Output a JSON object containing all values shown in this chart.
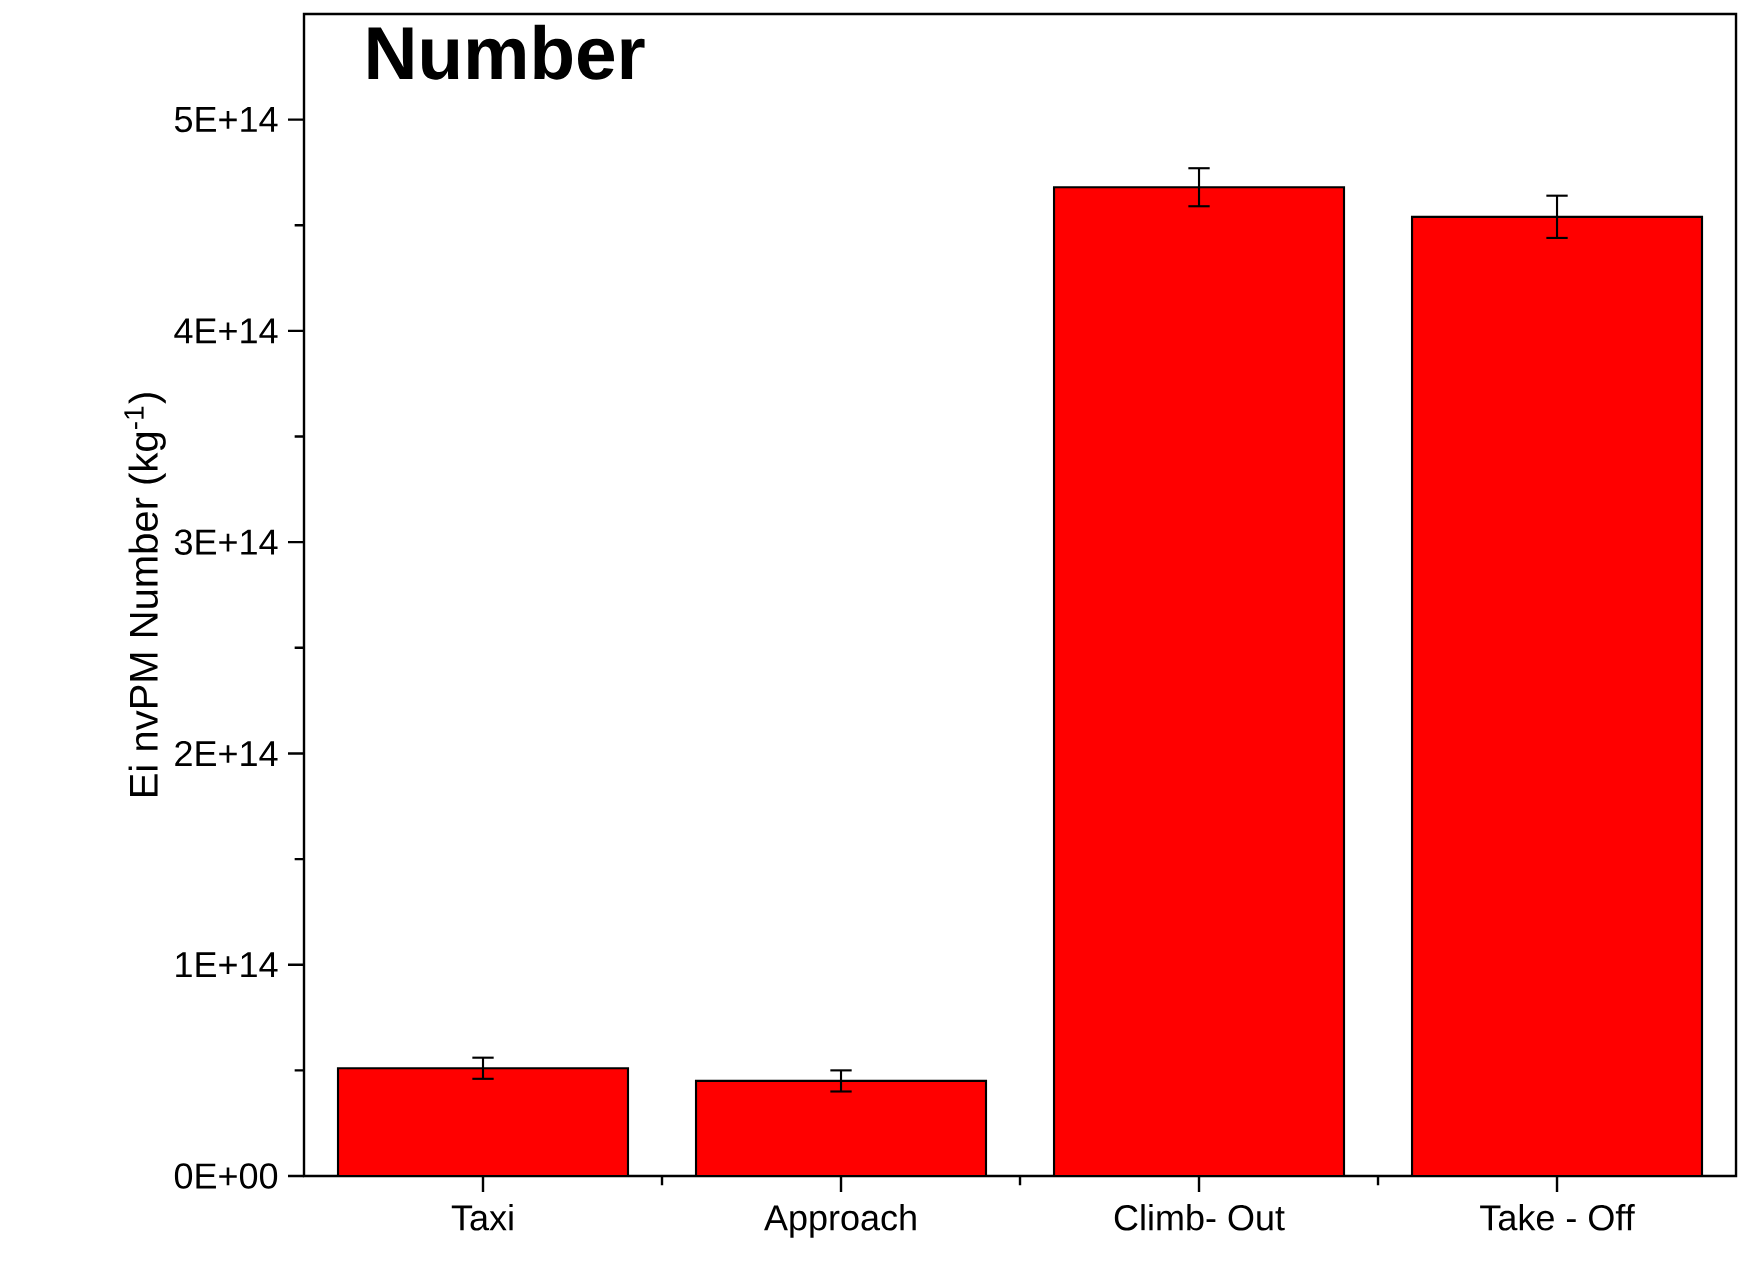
{
  "chart_data": {
    "type": "bar",
    "title": "Number",
    "ylabel": "Ei nvPM Number (kg$^{-1}$)",
    "categories": [
      "Taxi",
      "Approach",
      "Climb- Out",
      "Take - Off"
    ],
    "values": [
      51000000000000.0,
      45000000000000.0,
      468000000000000.0,
      454000000000000.0
    ],
    "errors": [
      5000000000000.0,
      5000000000000.0,
      9000000000000.0,
      10000000000000.0
    ],
    "color": "#ff0000",
    "ylim": [
      0,
      550000000000000.0
    ],
    "yticks": [
      {
        "value": 0,
        "label": "0E+00"
      },
      {
        "value": 100000000000000.0,
        "label": "1E+14"
      },
      {
        "value": 200000000000000.0,
        "label": "2E+14"
      },
      {
        "value": 300000000000000.0,
        "label": "3E+14"
      },
      {
        "value": 400000000000000.0,
        "label": "4E+14"
      },
      {
        "value": 500000000000000.0,
        "label": "5E+14"
      }
    ]
  }
}
